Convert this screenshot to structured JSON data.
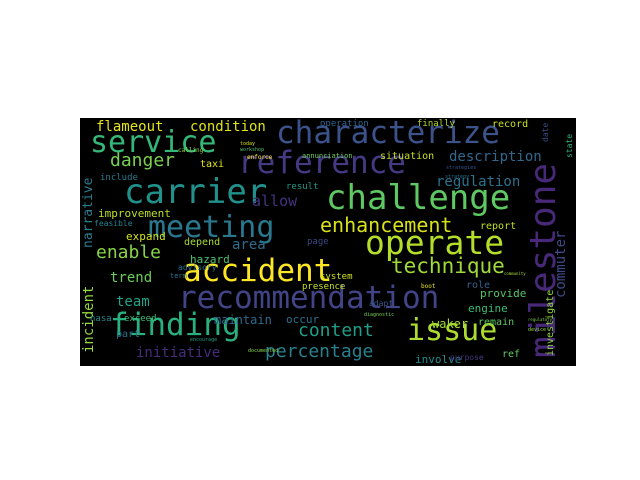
{
  "wordcloud": {
    "background": "#000000",
    "palette": "viridis",
    "words": [
      {
        "text": "accident",
        "color": "#fde725"
      },
      {
        "text": "recommendation",
        "color": "#414487"
      },
      {
        "text": "characterize",
        "color": "#3b528b"
      },
      {
        "text": "reference",
        "color": "#443a83"
      },
      {
        "text": "challenge",
        "color": "#5ec962"
      },
      {
        "text": "carrier",
        "color": "#21918c"
      },
      {
        "text": "service",
        "color": "#35b779"
      },
      {
        "text": "meeting",
        "color": "#2a788e"
      },
      {
        "text": "operate",
        "color": "#b5de2b"
      },
      {
        "text": "finding",
        "color": "#2ab07f"
      },
      {
        "text": "issue",
        "color": "#addc30"
      },
      {
        "text": "milestone",
        "color": "#482878"
      },
      {
        "text": "technique",
        "color": "#a0da39"
      },
      {
        "text": "enhancement",
        "color": "#d8e219"
      },
      {
        "text": "danger",
        "color": "#7ad151"
      },
      {
        "text": "enable",
        "color": "#86d549"
      },
      {
        "text": "content",
        "color": "#1f9e89"
      },
      {
        "text": "percentage",
        "color": "#26828e"
      },
      {
        "text": "flameout",
        "color": "#e5e419"
      },
      {
        "text": "condition",
        "color": "#dde318"
      },
      {
        "text": "description",
        "color": "#31688e"
      },
      {
        "text": "regulation",
        "color": "#2c728e"
      },
      {
        "text": "commuter",
        "color": "#3e4a89"
      },
      {
        "text": "allow",
        "color": "#46327e"
      },
      {
        "text": "trend",
        "color": "#6ccd5a"
      },
      {
        "text": "team",
        "color": "#1fa287"
      },
      {
        "text": "initiative",
        "color": "#472c7a"
      },
      {
        "text": "narrative",
        "color": "#287d8e"
      },
      {
        "text": "incident",
        "color": "#98d83e"
      },
      {
        "text": "improvement",
        "color": "#bddf26"
      },
      {
        "text": "expand",
        "color": "#d2e21b"
      },
      {
        "text": "area",
        "color": "#2f6c8e"
      },
      {
        "text": "hazard",
        "color": "#4ac16d"
      },
      {
        "text": "maintain",
        "color": "#30698e"
      },
      {
        "text": "waker",
        "color": "#a2da37"
      },
      {
        "text": "remain",
        "color": "#5cc863"
      },
      {
        "text": "investigate",
        "color": "#8fd744"
      },
      {
        "text": "provide",
        "color": "#56c667"
      },
      {
        "text": "involve",
        "color": "#228d8d"
      },
      {
        "text": "engine",
        "color": "#3bbb75"
      },
      {
        "text": "ref",
        "color": "#62cb5f"
      },
      {
        "text": "report",
        "color": "#c2df23"
      },
      {
        "text": "depend",
        "color": "#a8db34"
      },
      {
        "text": "occur",
        "color": "#2e6e8e"
      },
      {
        "text": "taxi",
        "color": "#e2e418"
      },
      {
        "text": "result",
        "color": "#1e9c89"
      },
      {
        "text": "situation",
        "color": "#c8e020"
      },
      {
        "text": "record",
        "color": "#cae11f"
      },
      {
        "text": "finally",
        "color": "#b0dd2f"
      },
      {
        "text": "operation",
        "color": "#32658e"
      },
      {
        "text": "annunciation",
        "color": "#6ece58"
      },
      {
        "text": "system",
        "color": "#d0e11c"
      },
      {
        "text": "presence",
        "color": "#c5e021"
      },
      {
        "text": "page",
        "color": "#3f4788"
      },
      {
        "text": "part",
        "color": "#2d708e"
      },
      {
        "text": "exceed",
        "color": "#3dbc74"
      },
      {
        "text": "nasa",
        "color": "#23888e"
      },
      {
        "text": "include",
        "color": "#297a8e"
      },
      {
        "text": "feasible",
        "color": "#25848e"
      },
      {
        "text": "advisory",
        "color": "#2a768e"
      },
      {
        "text": "enforce",
        "color": "#fde725"
      },
      {
        "text": "adapt",
        "color": "#38588c"
      },
      {
        "text": "date",
        "color": "#3c4f8a"
      },
      {
        "text": "state",
        "color": "#31b57b"
      },
      {
        "text": "purpose",
        "color": "#46337e"
      },
      {
        "text": "role",
        "color": "#34618d"
      },
      {
        "text": "boot",
        "color": "#e7e419"
      },
      {
        "text": "documented",
        "color": "#85d54a"
      },
      {
        "text": "strategy",
        "color": "#2c738e"
      },
      {
        "text": "diagnostic",
        "color": "#75d054"
      },
      {
        "text": "term",
        "color": "#2b748e"
      },
      {
        "text": "calling",
        "color": "#95d840"
      },
      {
        "text": "today",
        "color": "#d5e21a"
      },
      {
        "text": "encourage",
        "color": "#1fa088"
      },
      {
        "text": "device",
        "color": "#90d743"
      },
      {
        "text": "regulatory",
        "color": "#7fd34e"
      },
      {
        "text": "strategies",
        "color": "#39568c"
      },
      {
        "text": "workshop",
        "color": "#4ec36b"
      },
      {
        "text": "community",
        "color": "#a5db36"
      }
    ]
  }
}
